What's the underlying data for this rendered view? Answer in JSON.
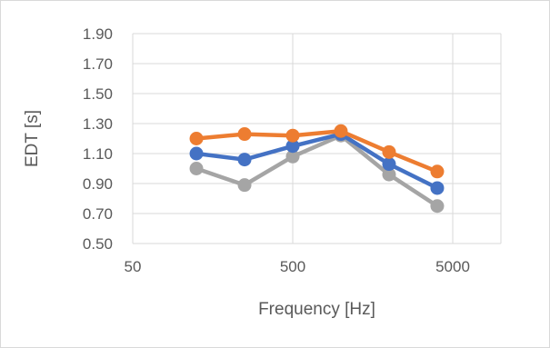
{
  "chart_data": {
    "type": "line",
    "title": "",
    "xlabel": "Frequency [Hz]",
    "ylabel": "EDT [s]",
    "x_scale": "log",
    "x_ticks": [
      50,
      500,
      5000
    ],
    "x_tick_labels": [
      "50",
      "500",
      "5000"
    ],
    "xlim": [
      50,
      10000
    ],
    "ylim": [
      0.5,
      1.9
    ],
    "y_ticks": [
      0.5,
      0.7,
      0.9,
      1.1,
      1.3,
      1.5,
      1.7,
      1.9
    ],
    "y_tick_labels": [
      "0.50",
      "0.70",
      "0.90",
      "1.10",
      "1.30",
      "1.50",
      "1.70",
      "1.90"
    ],
    "grid": true,
    "legend": "none",
    "x": [
      125,
      250,
      500,
      1000,
      2000,
      4000
    ],
    "series": [
      {
        "color": "#ED7D31",
        "values": [
          1.2,
          1.23,
          1.22,
          1.25,
          1.11,
          0.98
        ]
      },
      {
        "color": "#4472C4",
        "values": [
          1.1,
          1.06,
          1.15,
          1.23,
          1.03,
          0.87
        ]
      },
      {
        "color": "#A5A5A5",
        "values": [
          1.0,
          0.89,
          1.08,
          1.22,
          0.96,
          0.75
        ]
      }
    ]
  }
}
